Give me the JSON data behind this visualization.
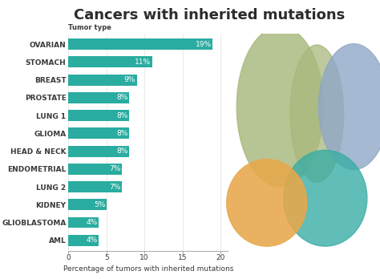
{
  "title": "Cancers with inherited mutations",
  "xlabel": "Percentage of tumors with inherited mutations",
  "ylabel_label": "Tumor type",
  "categories": [
    "OVARIAN",
    "STOMACH",
    "BREAST",
    "PROSTATE",
    "LUNG 1",
    "GLIOMA",
    "HEAD & NECK",
    "ENDOMETRIAL",
    "LUNG 2",
    "KIDNEY",
    "GLIOBLASTOMA",
    "AML"
  ],
  "values": [
    19,
    11,
    9,
    8,
    8,
    8,
    8,
    7,
    7,
    5,
    4,
    4
  ],
  "bar_color": "#2aaca0",
  "title_color": "#2b2b2b",
  "label_color": "#3a3a3a",
  "background_color": "#ffffff",
  "xlim": [
    0,
    21
  ],
  "xticks": [
    0,
    5,
    10,
    15,
    20
  ],
  "bar_height": 0.62,
  "title_fontsize": 13,
  "label_fontsize": 6.5,
  "tick_fontsize": 6.5,
  "xlabel_fontsize": 6.5,
  "pct_fontsize": 6.5,
  "organ_lung_color": "#a8b87c",
  "organ_stomach_color": "#8fa8c8",
  "organ_kidney_color": "#3aada5",
  "organ_brain_color": "#e8a84a"
}
